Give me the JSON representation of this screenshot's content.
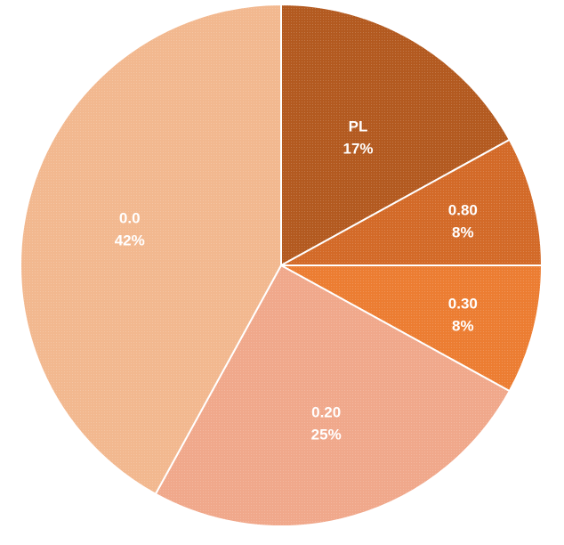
{
  "chart_data": {
    "type": "pie",
    "title": "",
    "slices": [
      {
        "category": "PL",
        "percent": 17,
        "label": "PL",
        "percent_label": "17%",
        "color": "#b35a20"
      },
      {
        "category": "0.80",
        "percent": 8,
        "label": "0.80",
        "percent_label": "8%",
        "color": "#d36a28"
      },
      {
        "category": "0.30",
        "percent": 8,
        "label": "0.30",
        "percent_label": "8%",
        "color": "#ec7d32"
      },
      {
        "category": "0.20",
        "percent": 25,
        "label": "0.20",
        "percent_label": "25%",
        "color": "#f0a88b"
      },
      {
        "category": "0.0",
        "percent": 42,
        "label": "0.0",
        "percent_label": "42%",
        "color": "#f2b88f"
      }
    ],
    "start_angle_deg": 0,
    "direction": "clockwise",
    "slice_border_color": "#ffffff",
    "legend": "none"
  }
}
